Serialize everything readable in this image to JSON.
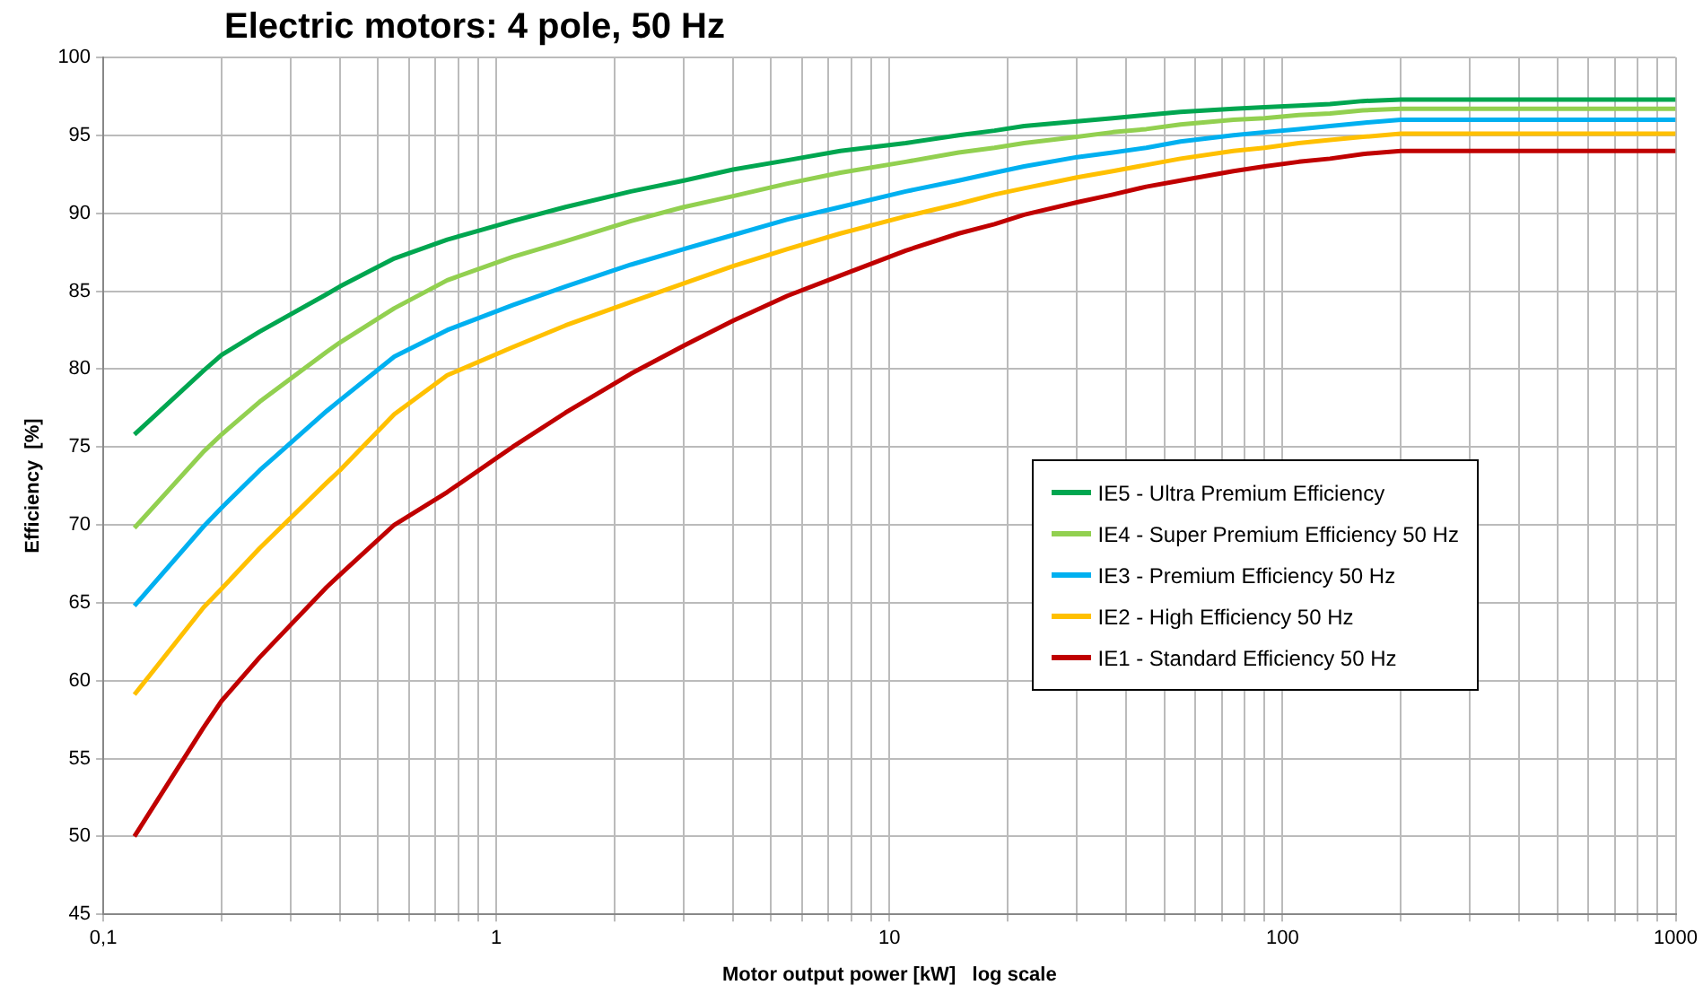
{
  "chart_data": {
    "type": "line",
    "title": "Electric motors: 4 pole, 50 Hz",
    "xlabel": "Motor output power [kW]   log scale",
    "ylabel": "Efficiency  [%]",
    "log": "x",
    "grid": true,
    "legend": "right",
    "marker": "none",
    "line_style": "solid",
    "x": [
      0.12,
      0.18,
      0.2,
      0.25,
      0.37,
      0.4,
      0.55,
      0.75,
      1.1,
      1.5,
      2.2,
      3,
      4,
      5.5,
      7.5,
      11,
      15,
      18.5,
      22,
      30,
      37,
      45,
      55,
      75,
      90,
      110,
      132,
      160,
      200,
      1000
    ],
    "xlim": [
      0.1,
      1000
    ],
    "xticks": [
      {
        "value": 0.1,
        "label": "0,1"
      },
      {
        "value": 0.2,
        "label": null
      },
      {
        "value": 0.3,
        "label": null
      },
      {
        "value": 0.4,
        "label": null
      },
      {
        "value": 0.5,
        "label": null
      },
      {
        "value": 0.6,
        "label": null
      },
      {
        "value": 0.7,
        "label": null
      },
      {
        "value": 0.8,
        "label": null
      },
      {
        "value": 0.9,
        "label": null
      },
      1,
      {
        "value": 2,
        "label": null
      },
      {
        "value": 3,
        "label": null
      },
      {
        "value": 4,
        "label": null
      },
      {
        "value": 5,
        "label": null
      },
      {
        "value": 6,
        "label": null
      },
      {
        "value": 7,
        "label": null
      },
      {
        "value": 8,
        "label": null
      },
      {
        "value": 9,
        "label": null
      },
      10,
      {
        "value": 20,
        "label": null
      },
      {
        "value": 30,
        "label": null
      },
      {
        "value": 40,
        "label": null
      },
      {
        "value": 50,
        "label": null
      },
      {
        "value": 60,
        "label": null
      },
      {
        "value": 70,
        "label": null
      },
      {
        "value": 80,
        "label": null
      },
      {
        "value": 90,
        "label": null
      },
      100,
      {
        "value": 200,
        "label": null
      },
      {
        "value": 300,
        "label": null
      },
      {
        "value": 400,
        "label": null
      },
      {
        "value": 500,
        "label": null
      },
      {
        "value": 600,
        "label": null
      },
      {
        "value": 700,
        "label": null
      },
      {
        "value": 800,
        "label": null
      },
      {
        "value": 900,
        "label": null
      },
      1000
    ],
    "ylim": [
      45,
      100
    ],
    "yticks": [
      45,
      50,
      55,
      60,
      65,
      70,
      75,
      80,
      85,
      90,
      95,
      100
    ],
    "series": [
      {
        "name": "IE5 - Ultra Premium  Efficiency",
        "color": "#00a650",
        "values": [
          75.8,
          79.9,
          80.9,
          82.4,
          84.8,
          85.3,
          87.1,
          88.3,
          89.5,
          90.4,
          91.4,
          92.1,
          92.8,
          93.4,
          94.0,
          94.5,
          95.0,
          95.3,
          95.6,
          95.9,
          96.1,
          96.3,
          96.5,
          96.7,
          96.8,
          96.9,
          97.0,
          97.2,
          97.3,
          97.3
        ]
      },
      {
        "name": "IE4 - Super Premium Efficiency 50 Hz",
        "color": "#92d050",
        "values": [
          69.8,
          74.7,
          75.8,
          77.9,
          81.1,
          81.7,
          83.9,
          85.7,
          87.2,
          88.2,
          89.5,
          90.4,
          91.1,
          91.9,
          92.6,
          93.3,
          93.9,
          94.2,
          94.5,
          94.9,
          95.2,
          95.4,
          95.7,
          96.0,
          96.1,
          96.3,
          96.4,
          96.6,
          96.7,
          96.7
        ]
      },
      {
        "name": "IE3 - Premium Efficiency 50 Hz",
        "color": "#00b0f0",
        "values": [
          64.8,
          69.9,
          71.1,
          73.5,
          77.3,
          78.0,
          80.8,
          82.5,
          84.1,
          85.3,
          86.7,
          87.7,
          88.6,
          89.6,
          90.4,
          91.4,
          92.1,
          92.6,
          93.0,
          93.6,
          93.9,
          94.2,
          94.6,
          95.0,
          95.2,
          95.4,
          95.6,
          95.8,
          96.0,
          96.0
        ]
      },
      {
        "name": "IE2 - High Efficiency 50 Hz",
        "color": "#ffc000",
        "values": [
          59.1,
          64.7,
          65.9,
          68.5,
          72.7,
          73.5,
          77.1,
          79.6,
          81.4,
          82.8,
          84.3,
          85.5,
          86.6,
          87.7,
          88.7,
          89.8,
          90.6,
          91.2,
          91.6,
          92.3,
          92.7,
          93.1,
          93.5,
          94.0,
          94.2,
          94.5,
          94.7,
          94.9,
          95.1,
          95.1
        ]
      },
      {
        "name": "IE1 - Standard Efficiency 50 Hz",
        "color": "#c00000",
        "values": [
          50.0,
          57.0,
          58.7,
          61.5,
          66.0,
          66.8,
          70.0,
          72.1,
          75.0,
          77.2,
          79.7,
          81.5,
          83.1,
          84.7,
          86.0,
          87.6,
          88.7,
          89.3,
          89.9,
          90.7,
          91.2,
          91.7,
          92.1,
          92.7,
          93.0,
          93.3,
          93.5,
          93.8,
          94.0,
          94.0
        ]
      }
    ]
  }
}
